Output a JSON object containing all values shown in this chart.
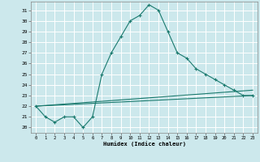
{
  "xlabel": "Humidex (Indice chaleur)",
  "bg_color": "#cce8ec",
  "line_color": "#1a7a6e",
  "grid_color": "#ffffff",
  "xlim": [
    -0.5,
    23.5
  ],
  "ylim": [
    19.5,
    31.8
  ],
  "xticks": [
    0,
    1,
    2,
    3,
    4,
    5,
    6,
    7,
    8,
    9,
    10,
    11,
    12,
    13,
    14,
    15,
    16,
    17,
    18,
    19,
    20,
    21,
    22,
    23
  ],
  "yticks": [
    20,
    21,
    22,
    23,
    24,
    25,
    26,
    27,
    28,
    29,
    30,
    31
  ],
  "line1_x": [
    0,
    1,
    2,
    3,
    4,
    5,
    6,
    7,
    8,
    9,
    10,
    11,
    12,
    13,
    14,
    15,
    16,
    17,
    18,
    19,
    20,
    21,
    22,
    23
  ],
  "line1_y": [
    22,
    21,
    20.5,
    21,
    21,
    20,
    21,
    25,
    27,
    28.5,
    30,
    30.5,
    31.5,
    31.0,
    29,
    27,
    26.5,
    25.5,
    25,
    24.5,
    24,
    23.5,
    23,
    23
  ],
  "line2_x": [
    0,
    23
  ],
  "line2_y": [
    22,
    23
  ],
  "line3_x": [
    0,
    23
  ],
  "line3_y": [
    22,
    23.5
  ]
}
